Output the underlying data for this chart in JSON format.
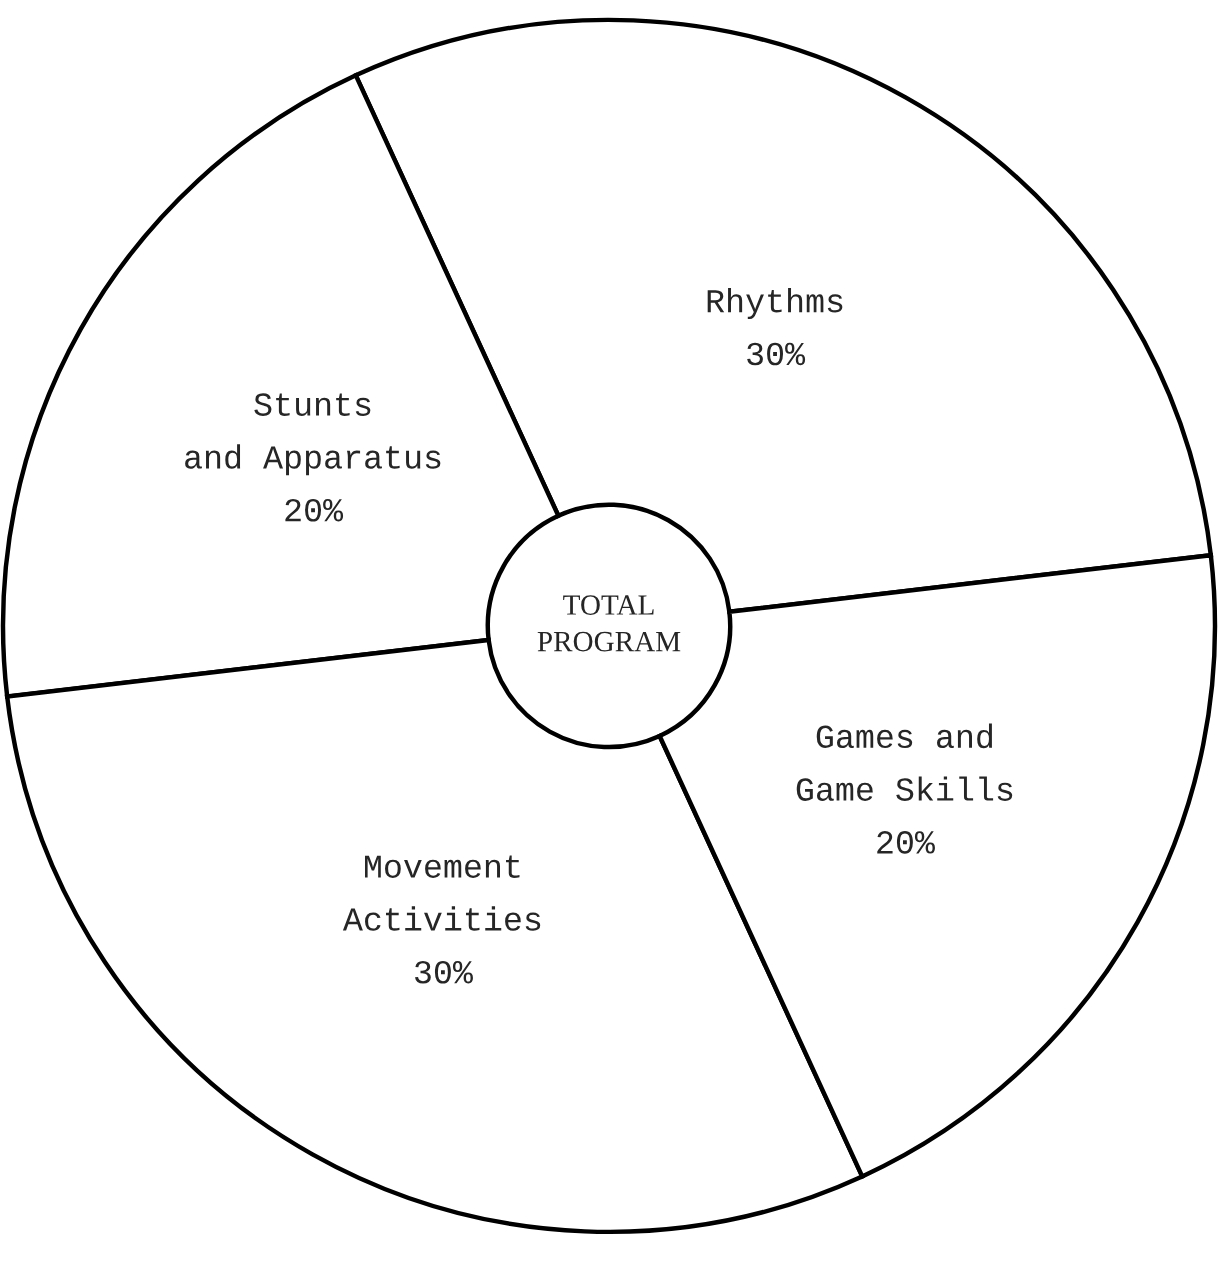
{
  "chart_data": {
    "type": "donut",
    "categories": [
      "Rhythms",
      "Stunts\nand Apparatus",
      "Movement\nActivities",
      "Games and\nGame Skills"
    ],
    "values": [
      30,
      20,
      30,
      20
    ],
    "value_labels": [
      "30%",
      "20%",
      "30%",
      "20%"
    ],
    "colors": [
      "#ffffff",
      "#ffffff",
      "#ffffff",
      "#ffffff"
    ],
    "annotations": [
      "TOTAL\nPROGRAM"
    ],
    "legend": false
  }
}
